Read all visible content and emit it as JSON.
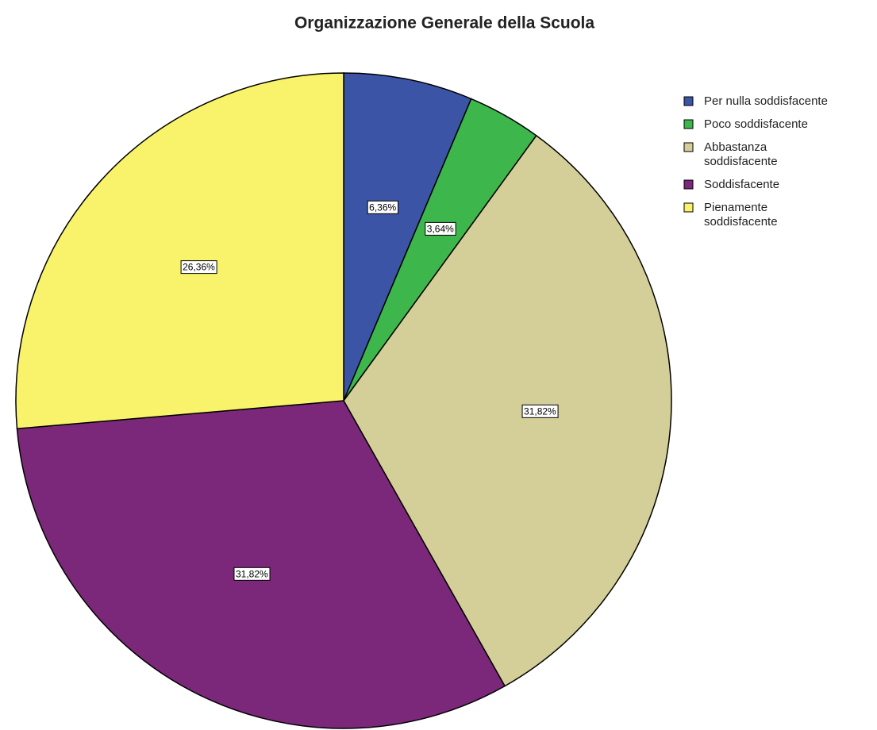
{
  "chart_data": {
    "type": "pie",
    "title": "Organizzazione Generale della Scuola",
    "categories": [
      "Per nulla soddisfacente",
      "Poco soddisfacente",
      "Abbastanza soddisfacente",
      "Soddisfacente",
      "Pienamente soddisfacente"
    ],
    "values": [
      6.36,
      3.64,
      31.82,
      31.82,
      26.36
    ],
    "value_labels": [
      "6,36%",
      "3,64%",
      "31,82%",
      "31,82%",
      "26,36%"
    ],
    "colors": [
      "#3b54a5",
      "#3db64c",
      "#d4cf98",
      "#7b287a",
      "#f8f36b"
    ],
    "legend": "right"
  }
}
